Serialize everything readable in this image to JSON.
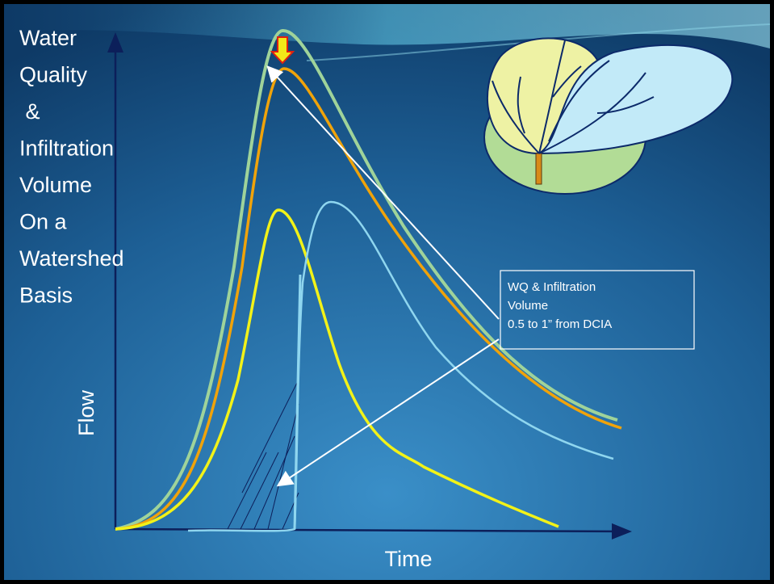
{
  "title_lines": [
    "Water",
    "Quality",
    " &",
    "Infiltration",
    "Volume",
    "On a",
    "Watershed",
    "Basis"
  ],
  "y_label": "Flow",
  "x_label": "Time",
  "callout": {
    "lines": [
      "WQ & Infiltration",
      "Volume",
      "0.5 to 1” from DCIA"
    ]
  }
}
